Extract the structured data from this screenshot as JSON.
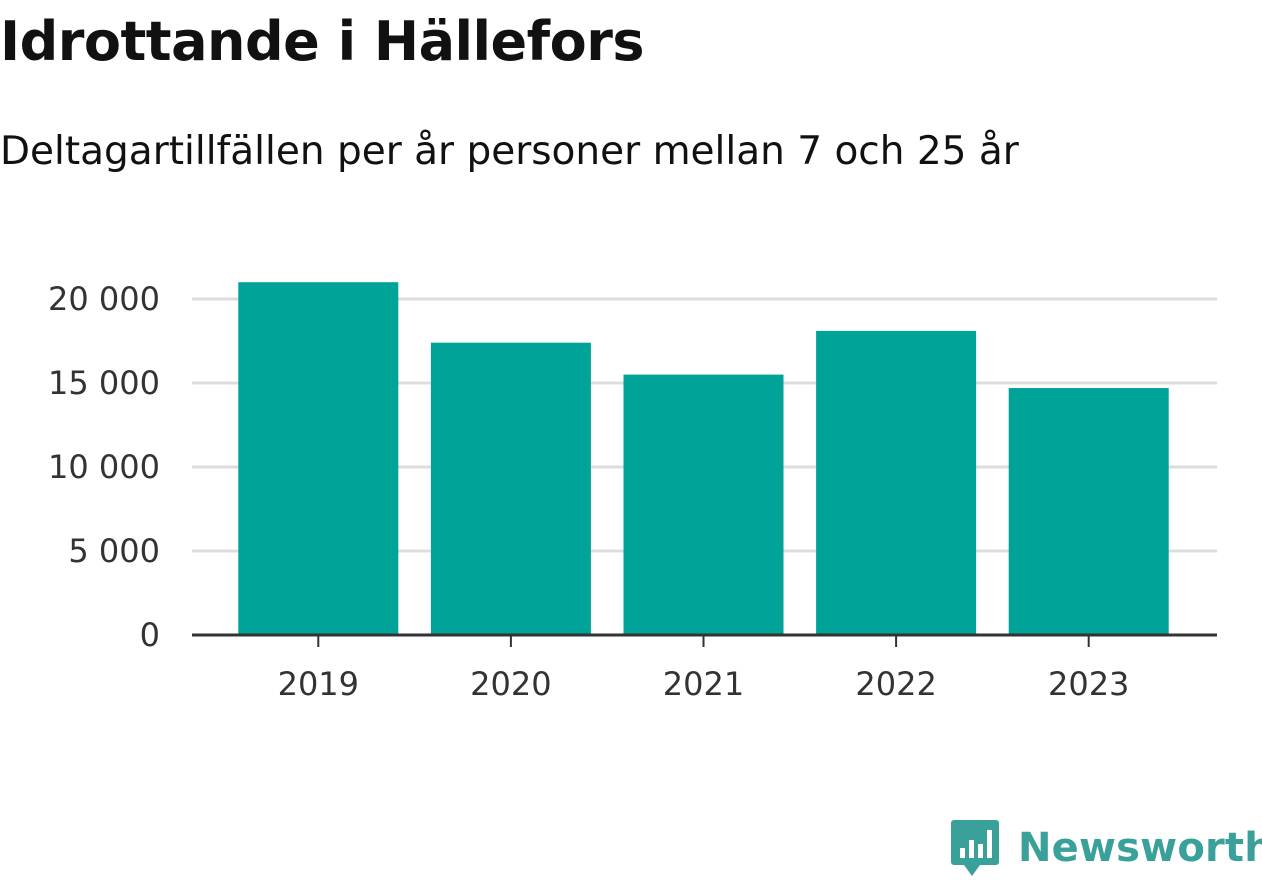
{
  "header": {
    "title": "Idrottande i Hällefors",
    "subtitle": "Deltagartillfällen per år personer mellan 7 och 25 år"
  },
  "brand": {
    "name": "Newsworthy",
    "icon": "newsworthy-logo-icon",
    "color": "#3aa19a"
  },
  "colors": {
    "bar": "#00a398",
    "grid": "#dddddd",
    "axis": "#333333"
  },
  "chart_data": {
    "type": "bar",
    "title": "Idrottande i Hällefors",
    "subtitle": "Deltagartillfällen per år personer mellan 7 och 25 år",
    "categories": [
      "2019",
      "2020",
      "2021",
      "2022",
      "2023"
    ],
    "values": [
      21000,
      17400,
      15500,
      18100,
      14700
    ],
    "ylim": [
      0,
      20000
    ],
    "yticks": [
      0,
      5000,
      10000,
      15000,
      20000
    ],
    "ytick_labels": [
      "0",
      "5 000",
      "10 000",
      "15 000",
      "20 000"
    ],
    "xlabel": "",
    "ylabel": "",
    "grid": true,
    "legend": "none"
  }
}
